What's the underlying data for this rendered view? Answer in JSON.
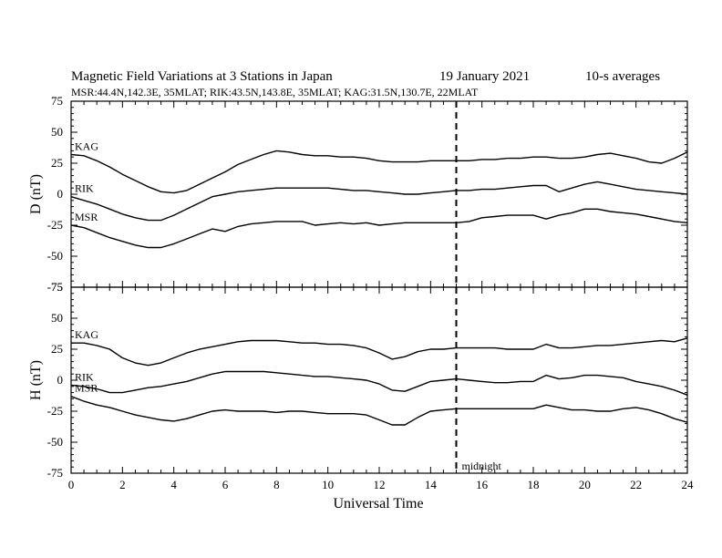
{
  "header": {
    "title": "Magnetic Field Variations at 3 Stations in Japan",
    "date": "19 January  2021",
    "averaging": "10-s averages",
    "stations_line": "MSR:44.4N,142.3E, 35MLAT;  RIK:43.5N,143.8E, 35MLAT;  KAG:31.5N,130.7E, 22MLAT"
  },
  "chart_data": [
    {
      "type": "line",
      "panel": "D",
      "ylabel": "D (nT)",
      "xlabel": "Universal Time",
      "xlim": [
        0,
        24
      ],
      "ylim": [
        -75,
        75
      ],
      "xticks": [
        0,
        2,
        4,
        6,
        8,
        10,
        12,
        14,
        16,
        18,
        20,
        22,
        24
      ],
      "yticks": [
        75,
        50,
        25,
        0,
        -25,
        -50,
        -75
      ],
      "midnight_ut": 15,
      "midnight_label": "midnight",
      "x": [
        0,
        0.5,
        1,
        1.5,
        2,
        2.5,
        3,
        3.5,
        4,
        4.5,
        5,
        5.5,
        6,
        6.5,
        7,
        7.5,
        8,
        8.5,
        9,
        9.5,
        10,
        10.5,
        11,
        11.5,
        12,
        12.5,
        13,
        13.5,
        14,
        14.5,
        15,
        15.5,
        16,
        16.5,
        17,
        17.5,
        18,
        18.5,
        19,
        19.5,
        20,
        20.5,
        21,
        21.5,
        22,
        22.5,
        23,
        23.5,
        24
      ],
      "series": [
        {
          "name": "KAG",
          "values": [
            32,
            31,
            27,
            22,
            16,
            11,
            6,
            2,
            1,
            3,
            8,
            13,
            18,
            24,
            28,
            32,
            35,
            34,
            32,
            31,
            31,
            30,
            30,
            29,
            27,
            26,
            26,
            26,
            27,
            27,
            27,
            27,
            28,
            28,
            29,
            29,
            30,
            30,
            29,
            29,
            30,
            32,
            33,
            31,
            29,
            26,
            25,
            29,
            34
          ]
        },
        {
          "name": "RIK",
          "values": [
            -2,
            -5,
            -8,
            -12,
            -16,
            -19,
            -21,
            -21,
            -17,
            -12,
            -7,
            -2,
            0,
            2,
            3,
            4,
            5,
            5,
            5,
            5,
            5,
            4,
            3,
            3,
            2,
            1,
            0,
            0,
            1,
            2,
            3,
            3,
            4,
            4,
            5,
            6,
            7,
            7,
            2,
            5,
            8,
            10,
            8,
            6,
            4,
            3,
            2,
            1,
            0
          ]
        },
        {
          "name": "MSR",
          "values": [
            -25,
            -27,
            -31,
            -35,
            -38,
            -41,
            -43,
            -43,
            -40,
            -36,
            -32,
            -28,
            -30,
            -26,
            -24,
            -23,
            -22,
            -22,
            -22,
            -25,
            -24,
            -23,
            -24,
            -23,
            -25,
            -24,
            -23,
            -23,
            -23,
            -23,
            -23,
            -22,
            -19,
            -18,
            -17,
            -17,
            -17,
            -20,
            -17,
            -15,
            -12,
            -12,
            -14,
            -15,
            -16,
            -18,
            -20,
            -22,
            -23
          ]
        }
      ]
    },
    {
      "type": "line",
      "panel": "H",
      "ylabel": "H (nT)",
      "xlabel": "Universal Time",
      "xlim": [
        0,
        24
      ],
      "ylim": [
        -75,
        75
      ],
      "xticks": [
        0,
        2,
        4,
        6,
        8,
        10,
        12,
        14,
        16,
        18,
        20,
        22,
        24
      ],
      "yticks": [
        75,
        50,
        25,
        0,
        -25,
        -50,
        -75
      ],
      "midnight_ut": 15,
      "midnight_label": "midnight",
      "x": [
        0,
        0.5,
        1,
        1.5,
        2,
        2.5,
        3,
        3.5,
        4,
        4.5,
        5,
        5.5,
        6,
        6.5,
        7,
        7.5,
        8,
        8.5,
        9,
        9.5,
        10,
        10.5,
        11,
        11.5,
        12,
        12.5,
        13,
        13.5,
        14,
        14.5,
        15,
        15.5,
        16,
        16.5,
        17,
        17.5,
        18,
        18.5,
        19,
        19.5,
        20,
        20.5,
        21,
        21.5,
        22,
        22.5,
        23,
        23.5,
        24
      ],
      "series": [
        {
          "name": "KAG",
          "values": [
            30,
            30,
            28,
            25,
            18,
            14,
            12,
            14,
            18,
            22,
            25,
            27,
            29,
            31,
            32,
            32,
            32,
            31,
            30,
            30,
            29,
            29,
            28,
            26,
            22,
            17,
            19,
            23,
            25,
            25,
            26,
            26,
            26,
            26,
            25,
            25,
            25,
            29,
            26,
            26,
            27,
            28,
            28,
            29,
            30,
            31,
            32,
            31,
            34
          ]
        },
        {
          "name": "RIK",
          "values": [
            -4,
            -5,
            -7,
            -10,
            -10,
            -8,
            -6,
            -5,
            -3,
            -1,
            2,
            5,
            7,
            7,
            7,
            7,
            6,
            5,
            4,
            3,
            3,
            2,
            1,
            0,
            -3,
            -8,
            -9,
            -5,
            -1,
            0,
            1,
            0,
            -1,
            -2,
            -2,
            -1,
            -1,
            4,
            1,
            2,
            4,
            4,
            3,
            2,
            -1,
            -3,
            -5,
            -8,
            -12
          ]
        },
        {
          "name": "MSR",
          "values": [
            -13,
            -17,
            -20,
            -22,
            -25,
            -28,
            -30,
            -32,
            -33,
            -31,
            -28,
            -25,
            -24,
            -25,
            -25,
            -25,
            -26,
            -25,
            -25,
            -26,
            -27,
            -27,
            -27,
            -28,
            -32,
            -36,
            -36,
            -30,
            -25,
            -24,
            -23,
            -23,
            -23,
            -23,
            -23,
            -23,
            -23,
            -20,
            -22,
            -24,
            -24,
            -25,
            -25,
            -23,
            -22,
            -24,
            -27,
            -31,
            -34
          ]
        }
      ]
    }
  ]
}
